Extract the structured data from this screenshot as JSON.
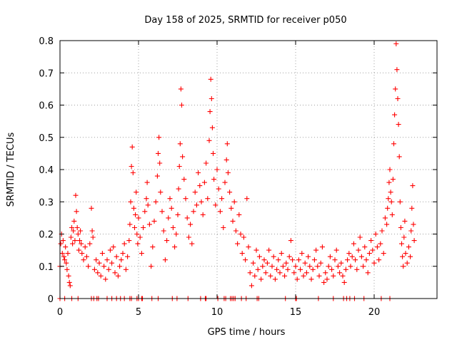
{
  "chart_data": {
    "type": "scatter",
    "title": "Day 158 of 2025, SRMTID for receiver p050",
    "xlabel": "GPS time / hours",
    "ylabel": "SRMTID / TECUs",
    "xlim": [
      0,
      24
    ],
    "ylim": [
      0,
      0.8
    ],
    "xticks": [
      0,
      5,
      10,
      15,
      20
    ],
    "xtick_labels": [
      "0",
      "5",
      "10",
      "15",
      "20"
    ],
    "yticks": [
      0,
      0.1,
      0.2,
      0.3,
      0.4,
      0.5,
      0.6,
      0.7,
      0.8
    ],
    "ytick_labels": [
      "0",
      "0.1",
      "0.2",
      "0.3",
      "0.4",
      "0.5",
      "0.6",
      "0.7",
      "0.8"
    ],
    "grid": true,
    "marker": "+",
    "color": "#ff0000",
    "series": [
      {
        "name": "SRMTID",
        "points": [
          [
            0.0,
            0.1
          ],
          [
            0.05,
            0.17
          ],
          [
            0.1,
            0.2
          ],
          [
            0.15,
            0.14
          ],
          [
            0.2,
            0.18
          ],
          [
            0.25,
            0.13
          ],
          [
            0.3,
            0.12
          ],
          [
            0.35,
            0.16
          ],
          [
            0.4,
            0.11
          ],
          [
            0.45,
            0.09
          ],
          [
            0.5,
            0.14
          ],
          [
            0.55,
            0.07
          ],
          [
            0.6,
            0.05
          ],
          [
            0.65,
            0.04
          ],
          [
            0.7,
            0.19
          ],
          [
            0.75,
            0.22
          ],
          [
            0.8,
            0.17
          ],
          [
            0.85,
            0.21
          ],
          [
            0.9,
            0.24
          ],
          [
            0.95,
            0.18
          ],
          [
            1.0,
            0.32
          ],
          [
            1.05,
            0.27
          ],
          [
            1.1,
            0.22
          ],
          [
            1.15,
            0.2
          ],
          [
            1.2,
            0.15
          ],
          [
            1.25,
            0.18
          ],
          [
            1.3,
            0.21
          ],
          [
            1.35,
            0.17
          ],
          [
            1.4,
            0.14
          ],
          [
            1.5,
            0.12
          ],
          [
            1.6,
            0.16
          ],
          [
            1.7,
            0.13
          ],
          [
            1.8,
            0.1
          ],
          [
            1.9,
            0.17
          ],
          [
            2.0,
            0.28
          ],
          [
            2.05,
            0.21
          ],
          [
            2.1,
            0.19
          ],
          [
            2.2,
            0.09
          ],
          [
            2.3,
            0.12
          ],
          [
            2.4,
            0.08
          ],
          [
            2.5,
            0.11
          ],
          [
            2.6,
            0.07
          ],
          [
            2.7,
            0.14
          ],
          [
            2.8,
            0.1
          ],
          [
            2.9,
            0.06
          ],
          [
            3.0,
            0.12
          ],
          [
            3.1,
            0.09
          ],
          [
            3.2,
            0.15
          ],
          [
            3.3,
            0.11
          ],
          [
            3.4,
            0.16
          ],
          [
            3.5,
            0.08
          ],
          [
            3.6,
            0.13
          ],
          [
            3.7,
            0.07
          ],
          [
            3.8,
            0.1
          ],
          [
            3.9,
            0.12
          ],
          [
            4.0,
            0.14
          ],
          [
            4.1,
            0.17
          ],
          [
            4.2,
            0.09
          ],
          [
            4.3,
            0.13
          ],
          [
            4.4,
            0.18
          ],
          [
            4.45,
            0.23
          ],
          [
            4.5,
            0.3
          ],
          [
            4.55,
            0.41
          ],
          [
            4.6,
            0.47
          ],
          [
            4.65,
            0.39
          ],
          [
            4.7,
            0.28
          ],
          [
            4.75,
            0.22
          ],
          [
            4.8,
            0.26
          ],
          [
            4.85,
            0.33
          ],
          [
            4.9,
            0.2
          ],
          [
            4.95,
            0.17
          ],
          [
            5.0,
            0.25
          ],
          [
            5.1,
            0.19
          ],
          [
            5.2,
            0.14
          ],
          [
            5.3,
            0.22
          ],
          [
            5.4,
            0.27
          ],
          [
            5.5,
            0.31
          ],
          [
            5.55,
            0.36
          ],
          [
            5.6,
            0.29
          ],
          [
            5.7,
            0.23
          ],
          [
            5.8,
            0.1
          ],
          [
            5.9,
            0.16
          ],
          [
            6.0,
            0.24
          ],
          [
            6.1,
            0.3
          ],
          [
            6.2,
            0.38
          ],
          [
            6.25,
            0.45
          ],
          [
            6.3,
            0.5
          ],
          [
            6.35,
            0.42
          ],
          [
            6.4,
            0.33
          ],
          [
            6.5,
            0.27
          ],
          [
            6.6,
            0.21
          ],
          [
            6.7,
            0.12
          ],
          [
            6.8,
            0.18
          ],
          [
            6.9,
            0.25
          ],
          [
            7.0,
            0.31
          ],
          [
            7.1,
            0.28
          ],
          [
            7.2,
            0.22
          ],
          [
            7.3,
            0.16
          ],
          [
            7.4,
            0.2
          ],
          [
            7.5,
            0.26
          ],
          [
            7.55,
            0.34
          ],
          [
            7.6,
            0.41
          ],
          [
            7.65,
            0.48
          ],
          [
            7.7,
            0.65
          ],
          [
            7.75,
            0.6
          ],
          [
            7.8,
            0.44
          ],
          [
            7.9,
            0.37
          ],
          [
            8.0,
            0.31
          ],
          [
            8.1,
            0.25
          ],
          [
            8.2,
            0.19
          ],
          [
            8.3,
            0.23
          ],
          [
            8.4,
            0.17
          ],
          [
            8.5,
            0.27
          ],
          [
            8.6,
            0.33
          ],
          [
            8.7,
            0.29
          ],
          [
            8.8,
            0.39
          ],
          [
            8.9,
            0.35
          ],
          [
            9.0,
            0.3
          ],
          [
            9.1,
            0.26
          ],
          [
            9.2,
            0.36
          ],
          [
            9.3,
            0.42
          ],
          [
            9.4,
            0.31
          ],
          [
            9.5,
            0.49
          ],
          [
            9.55,
            0.58
          ],
          [
            9.6,
            0.68
          ],
          [
            9.65,
            0.62
          ],
          [
            9.7,
            0.53
          ],
          [
            9.75,
            0.45
          ],
          [
            9.8,
            0.37
          ],
          [
            9.9,
            0.29
          ],
          [
            10.0,
            0.4
          ],
          [
            10.1,
            0.34
          ],
          [
            10.2,
            0.27
          ],
          [
            10.3,
            0.31
          ],
          [
            10.4,
            0.22
          ],
          [
            10.5,
            0.36
          ],
          [
            10.6,
            0.43
          ],
          [
            10.65,
            0.48
          ],
          [
            10.7,
            0.39
          ],
          [
            10.8,
            0.33
          ],
          [
            10.9,
            0.28
          ],
          [
            11.0,
            0.24
          ],
          [
            11.1,
            0.3
          ],
          [
            11.2,
            0.21
          ],
          [
            11.3,
            0.17
          ],
          [
            11.4,
            0.26
          ],
          [
            11.5,
            0.2
          ],
          [
            11.6,
            0.14
          ],
          [
            11.7,
            0.19
          ],
          [
            11.8,
            0.12
          ],
          [
            11.9,
            0.31
          ],
          [
            12.0,
            0.16
          ],
          [
            12.1,
            0.08
          ],
          [
            12.2,
            0.04
          ],
          [
            12.3,
            0.11
          ],
          [
            12.4,
            0.07
          ],
          [
            12.5,
            0.15
          ],
          [
            12.6,
            0.09
          ],
          [
            12.7,
            0.13
          ],
          [
            12.8,
            0.06
          ],
          [
            12.9,
            0.1
          ],
          [
            13.0,
            0.12
          ],
          [
            13.1,
            0.08
          ],
          [
            13.2,
            0.11
          ],
          [
            13.3,
            0.15
          ],
          [
            13.4,
            0.07
          ],
          [
            13.5,
            0.1
          ],
          [
            13.6,
            0.13
          ],
          [
            13.7,
            0.06
          ],
          [
            13.8,
            0.09
          ],
          [
            13.9,
            0.12
          ],
          [
            14.0,
            0.08
          ],
          [
            14.1,
            0.14
          ],
          [
            14.2,
            0.1
          ],
          [
            14.3,
            0.07
          ],
          [
            14.4,
            0.11
          ],
          [
            14.5,
            0.09
          ],
          [
            14.6,
            0.13
          ],
          [
            14.7,
            0.18
          ],
          [
            14.8,
            0.12
          ],
          [
            14.9,
            0.08
          ],
          [
            15.0,
            0.1
          ],
          [
            15.1,
            0.06
          ],
          [
            15.2,
            0.12
          ],
          [
            15.3,
            0.09
          ],
          [
            15.4,
            0.14
          ],
          [
            15.5,
            0.07
          ],
          [
            15.6,
            0.11
          ],
          [
            15.7,
            0.08
          ],
          [
            15.8,
            0.13
          ],
          [
            15.9,
            0.1
          ],
          [
            16.0,
            0.06
          ],
          [
            16.1,
            0.09
          ],
          [
            16.2,
            0.12
          ],
          [
            16.3,
            0.15
          ],
          [
            16.4,
            0.1
          ],
          [
            16.5,
            0.07
          ],
          [
            16.6,
            0.11
          ],
          [
            16.7,
            0.16
          ],
          [
            16.8,
            0.05
          ],
          [
            16.9,
            0.08
          ],
          [
            17.0,
            0.06
          ],
          [
            17.1,
            0.1
          ],
          [
            17.2,
            0.13
          ],
          [
            17.3,
            0.09
          ],
          [
            17.4,
            0.07
          ],
          [
            17.5,
            0.12
          ],
          [
            17.6,
            0.15
          ],
          [
            17.7,
            0.1
          ],
          [
            17.8,
            0.08
          ],
          [
            17.9,
            0.11
          ],
          [
            18.0,
            0.07
          ],
          [
            18.1,
            0.05
          ],
          [
            18.2,
            0.09
          ],
          [
            18.3,
            0.12
          ],
          [
            18.4,
            0.14
          ],
          [
            18.5,
            0.1
          ],
          [
            18.6,
            0.13
          ],
          [
            18.7,
            0.17
          ],
          [
            18.8,
            0.12
          ],
          [
            18.9,
            0.09
          ],
          [
            19.0,
            0.15
          ],
          [
            19.1,
            0.19
          ],
          [
            19.2,
            0.13
          ],
          [
            19.3,
            0.1
          ],
          [
            19.4,
            0.16
          ],
          [
            19.5,
            0.12
          ],
          [
            19.6,
            0.08
          ],
          [
            19.7,
            0.14
          ],
          [
            19.8,
            0.18
          ],
          [
            19.9,
            0.15
          ],
          [
            20.0,
            0.11
          ],
          [
            20.1,
            0.2
          ],
          [
            20.2,
            0.16
          ],
          [
            20.3,
            0.12
          ],
          [
            20.4,
            0.17
          ],
          [
            20.5,
            0.21
          ],
          [
            20.6,
            0.14
          ],
          [
            20.7,
            0.25
          ],
          [
            20.8,
            0.23
          ],
          [
            20.85,
            0.28
          ],
          [
            20.9,
            0.31
          ],
          [
            20.95,
            0.36
          ],
          [
            21.0,
            0.4
          ],
          [
            21.05,
            0.33
          ],
          [
            21.1,
            0.3
          ],
          [
            21.15,
            0.26
          ],
          [
            21.2,
            0.37
          ],
          [
            21.25,
            0.48
          ],
          [
            21.3,
            0.57
          ],
          [
            21.35,
            0.65
          ],
          [
            21.4,
            0.79
          ],
          [
            21.45,
            0.71
          ],
          [
            21.5,
            0.62
          ],
          [
            21.55,
            0.54
          ],
          [
            21.6,
            0.44
          ],
          [
            21.65,
            0.3
          ],
          [
            21.7,
            0.22
          ],
          [
            21.75,
            0.17
          ],
          [
            21.8,
            0.13
          ],
          [
            21.85,
            0.1
          ],
          [
            21.9,
            0.19
          ],
          [
            21.95,
            0.24
          ],
          [
            22.0,
            0.14
          ],
          [
            22.1,
            0.11
          ],
          [
            22.2,
            0.16
          ],
          [
            22.3,
            0.13
          ],
          [
            22.35,
            0.21
          ],
          [
            22.4,
            0.28
          ],
          [
            22.45,
            0.35
          ],
          [
            22.5,
            0.23
          ],
          [
            22.55,
            0.18
          ]
        ],
        "zero_points": [
          0.0,
          0.3,
          0.75,
          1.15,
          2.0,
          2.15,
          2.35,
          2.45,
          3.0,
          3.3,
          3.6,
          3.85,
          4.1,
          4.45,
          4.55,
          4.9,
          5.0,
          5.2,
          5.25,
          5.85,
          6.25,
          7.15,
          7.45,
          8.15,
          8.95,
          9.25,
          9.3,
          10.05,
          10.45,
          10.55,
          10.85,
          10.95,
          11.05,
          11.15,
          11.55,
          11.85,
          12.55,
          12.65,
          14.35,
          15.0,
          15.05,
          16.45,
          17.4,
          18.05,
          18.25,
          18.45,
          18.75,
          19.35,
          20.45,
          21.0
        ]
      }
    ]
  }
}
